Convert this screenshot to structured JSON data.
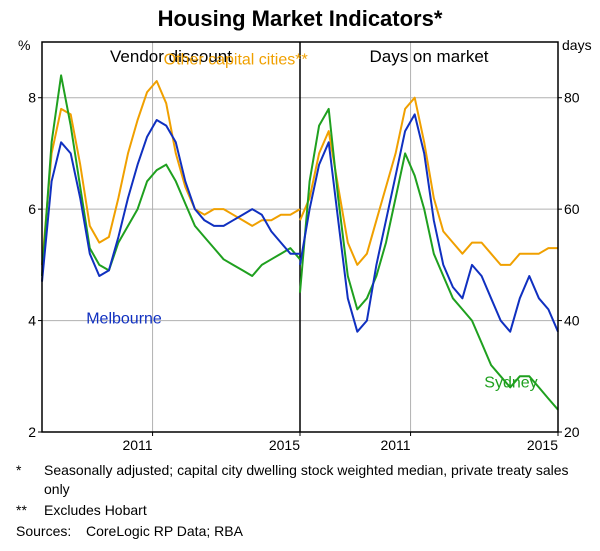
{
  "title": "Housing Market Indicators*",
  "footnote1_marker": "*",
  "footnote1_text": "Seasonally adjusted; capital city dwelling stock weighted median, private treaty sales only",
  "footnote2_marker": "**",
  "footnote2_text": "Excludes Hobart",
  "sources_label": "Sources:",
  "sources_text": "CoreLogic RP Data; RBA",
  "left_panel": {
    "label": "Vendor discount",
    "y_unit": "%",
    "ylim": [
      2,
      9
    ],
    "yticks": [
      2,
      4,
      6,
      8
    ],
    "xlim": [
      2008,
      2015
    ],
    "xticks": [
      2011,
      2015
    ],
    "series_label_other": "Other capital cities**",
    "series_label_mel": "Melbourne",
    "colors": {
      "sydney": "#1fa01f",
      "melbourne": "#1030c0",
      "other": "#f0a000",
      "grid": "#b0b0b0"
    },
    "line_width": 2,
    "sydney": [
      4.8,
      7.2,
      8.4,
      7.5,
      6.4,
      5.3,
      5.0,
      4.9,
      5.4,
      5.7,
      6.0,
      6.5,
      6.7,
      6.8,
      6.5,
      6.1,
      5.7,
      5.5,
      5.3,
      5.1,
      5.0,
      4.9,
      4.8,
      5.0,
      5.1,
      5.2,
      5.3,
      5.1
    ],
    "melbourne": [
      4.7,
      6.5,
      7.2,
      7.0,
      6.2,
      5.2,
      4.8,
      4.9,
      5.5,
      6.2,
      6.8,
      7.3,
      7.6,
      7.5,
      7.2,
      6.5,
      6.0,
      5.8,
      5.7,
      5.7,
      5.8,
      5.9,
      6.0,
      5.9,
      5.6,
      5.4,
      5.2,
      5.2
    ],
    "other": [
      5.0,
      7.0,
      7.8,
      7.7,
      6.8,
      5.7,
      5.4,
      5.5,
      6.2,
      7.0,
      7.6,
      8.1,
      8.3,
      7.9,
      7.0,
      6.4,
      6.0,
      5.9,
      6.0,
      6.0,
      5.9,
      5.8,
      5.7,
      5.8,
      5.8,
      5.9,
      5.9,
      6.0
    ]
  },
  "right_panel": {
    "label": "Days on market",
    "y_unit": "days",
    "ylim": [
      20,
      90
    ],
    "yticks": [
      20,
      40,
      60,
      80
    ],
    "xlim": [
      2008,
      2015
    ],
    "xticks": [
      2011,
      2015
    ],
    "series_label_syd": "Sydney",
    "colors": {
      "sydney": "#1fa01f",
      "melbourne": "#1030c0",
      "other": "#f0a000"
    },
    "line_width": 2,
    "sydney": [
      45,
      65,
      75,
      78,
      62,
      48,
      42,
      44,
      48,
      54,
      62,
      70,
      66,
      60,
      52,
      48,
      44,
      42,
      40,
      36,
      32,
      30,
      28,
      30,
      30,
      28,
      26,
      24
    ],
    "melbourne": [
      50,
      60,
      68,
      72,
      58,
      44,
      38,
      40,
      50,
      58,
      66,
      74,
      77,
      70,
      58,
      50,
      46,
      44,
      50,
      48,
      44,
      40,
      38,
      44,
      48,
      44,
      42,
      38
    ],
    "other": [
      58,
      62,
      70,
      74,
      64,
      54,
      50,
      52,
      58,
      64,
      70,
      78,
      80,
      72,
      62,
      56,
      54,
      52,
      54,
      54,
      52,
      50,
      50,
      52,
      52,
      52,
      53,
      53
    ]
  }
}
